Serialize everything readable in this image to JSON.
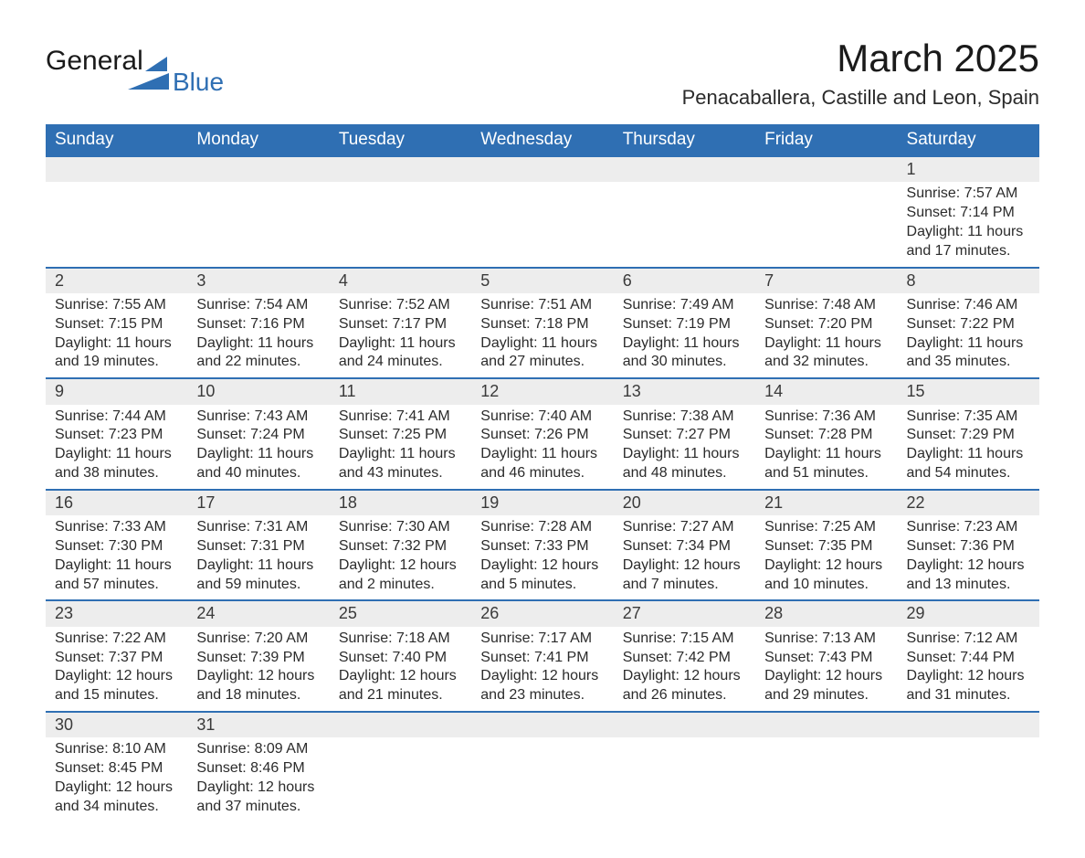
{
  "logo": {
    "word1": "General",
    "word2": "Blue"
  },
  "heading": {
    "title": "March 2025",
    "location": "Penacaballera, Castille and Leon, Spain"
  },
  "colors": {
    "header_bg": "#2f6fb3",
    "header_text": "#ffffff",
    "daynum_bg": "#ededed",
    "row_border": "#2f6fb3",
    "body_text": "#2b2b2b"
  },
  "typography": {
    "title_fontsize": 42,
    "location_fontsize": 22,
    "header_fontsize": 19,
    "cell_fontsize": 16
  },
  "weekdays": [
    "Sunday",
    "Monday",
    "Tuesday",
    "Wednesday",
    "Thursday",
    "Friday",
    "Saturday"
  ],
  "weeks": [
    [
      null,
      null,
      null,
      null,
      null,
      null,
      {
        "n": "1",
        "sunrise": "7:57 AM",
        "sunset": "7:14 PM",
        "daylight": "11 hours and 17 minutes."
      }
    ],
    [
      {
        "n": "2",
        "sunrise": "7:55 AM",
        "sunset": "7:15 PM",
        "daylight": "11 hours and 19 minutes."
      },
      {
        "n": "3",
        "sunrise": "7:54 AM",
        "sunset": "7:16 PM",
        "daylight": "11 hours and 22 minutes."
      },
      {
        "n": "4",
        "sunrise": "7:52 AM",
        "sunset": "7:17 PM",
        "daylight": "11 hours and 24 minutes."
      },
      {
        "n": "5",
        "sunrise": "7:51 AM",
        "sunset": "7:18 PM",
        "daylight": "11 hours and 27 minutes."
      },
      {
        "n": "6",
        "sunrise": "7:49 AM",
        "sunset": "7:19 PM",
        "daylight": "11 hours and 30 minutes."
      },
      {
        "n": "7",
        "sunrise": "7:48 AM",
        "sunset": "7:20 PM",
        "daylight": "11 hours and 32 minutes."
      },
      {
        "n": "8",
        "sunrise": "7:46 AM",
        "sunset": "7:22 PM",
        "daylight": "11 hours and 35 minutes."
      }
    ],
    [
      {
        "n": "9",
        "sunrise": "7:44 AM",
        "sunset": "7:23 PM",
        "daylight": "11 hours and 38 minutes."
      },
      {
        "n": "10",
        "sunrise": "7:43 AM",
        "sunset": "7:24 PM",
        "daylight": "11 hours and 40 minutes."
      },
      {
        "n": "11",
        "sunrise": "7:41 AM",
        "sunset": "7:25 PM",
        "daylight": "11 hours and 43 minutes."
      },
      {
        "n": "12",
        "sunrise": "7:40 AM",
        "sunset": "7:26 PM",
        "daylight": "11 hours and 46 minutes."
      },
      {
        "n": "13",
        "sunrise": "7:38 AM",
        "sunset": "7:27 PM",
        "daylight": "11 hours and 48 minutes."
      },
      {
        "n": "14",
        "sunrise": "7:36 AM",
        "sunset": "7:28 PM",
        "daylight": "11 hours and 51 minutes."
      },
      {
        "n": "15",
        "sunrise": "7:35 AM",
        "sunset": "7:29 PM",
        "daylight": "11 hours and 54 minutes."
      }
    ],
    [
      {
        "n": "16",
        "sunrise": "7:33 AM",
        "sunset": "7:30 PM",
        "daylight": "11 hours and 57 minutes."
      },
      {
        "n": "17",
        "sunrise": "7:31 AM",
        "sunset": "7:31 PM",
        "daylight": "11 hours and 59 minutes."
      },
      {
        "n": "18",
        "sunrise": "7:30 AM",
        "sunset": "7:32 PM",
        "daylight": "12 hours and 2 minutes."
      },
      {
        "n": "19",
        "sunrise": "7:28 AM",
        "sunset": "7:33 PM",
        "daylight": "12 hours and 5 minutes."
      },
      {
        "n": "20",
        "sunrise": "7:27 AM",
        "sunset": "7:34 PM",
        "daylight": "12 hours and 7 minutes."
      },
      {
        "n": "21",
        "sunrise": "7:25 AM",
        "sunset": "7:35 PM",
        "daylight": "12 hours and 10 minutes."
      },
      {
        "n": "22",
        "sunrise": "7:23 AM",
        "sunset": "7:36 PM",
        "daylight": "12 hours and 13 minutes."
      }
    ],
    [
      {
        "n": "23",
        "sunrise": "7:22 AM",
        "sunset": "7:37 PM",
        "daylight": "12 hours and 15 minutes."
      },
      {
        "n": "24",
        "sunrise": "7:20 AM",
        "sunset": "7:39 PM",
        "daylight": "12 hours and 18 minutes."
      },
      {
        "n": "25",
        "sunrise": "7:18 AM",
        "sunset": "7:40 PM",
        "daylight": "12 hours and 21 minutes."
      },
      {
        "n": "26",
        "sunrise": "7:17 AM",
        "sunset": "7:41 PM",
        "daylight": "12 hours and 23 minutes."
      },
      {
        "n": "27",
        "sunrise": "7:15 AM",
        "sunset": "7:42 PM",
        "daylight": "12 hours and 26 minutes."
      },
      {
        "n": "28",
        "sunrise": "7:13 AM",
        "sunset": "7:43 PM",
        "daylight": "12 hours and 29 minutes."
      },
      {
        "n": "29",
        "sunrise": "7:12 AM",
        "sunset": "7:44 PM",
        "daylight": "12 hours and 31 minutes."
      }
    ],
    [
      {
        "n": "30",
        "sunrise": "8:10 AM",
        "sunset": "8:45 PM",
        "daylight": "12 hours and 34 minutes."
      },
      {
        "n": "31",
        "sunrise": "8:09 AM",
        "sunset": "8:46 PM",
        "daylight": "12 hours and 37 minutes."
      },
      null,
      null,
      null,
      null,
      null
    ]
  ],
  "labels": {
    "sunrise": "Sunrise: ",
    "sunset": "Sunset: ",
    "daylight": "Daylight: "
  }
}
